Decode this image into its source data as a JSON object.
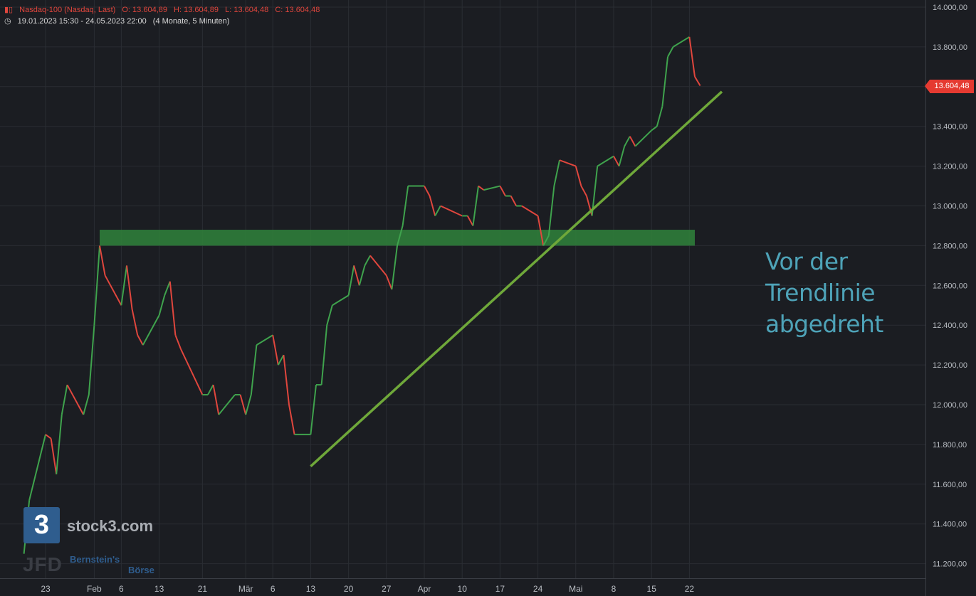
{
  "header": {
    "instrument": "Nasdaq-100 (Nasdaq, Last)",
    "open": "O: 13.604,89",
    "high": "H: 13.604,89",
    "low": "L: 13.604,48",
    "close": "C: 13.604,48",
    "range": "19.01.2023 15:30 - 24.05.2023 22:00",
    "period": "(4 Monate, 5 Minuten)"
  },
  "annotation": [
    "Vor der",
    "Trendlinie",
    "abgedreht"
  ],
  "last_price_label": "13.604,48",
  "branding": {
    "logo_glyph": "3",
    "logo_text": "stock3.com",
    "jfd_text": "JFD",
    "partner_line1": "Bernstein's",
    "partner_line2": "Börse"
  },
  "colors": {
    "up": "#3fa34d",
    "down": "#e0463d",
    "trendline": "#6fa83a",
    "zone": "#2f7d3a",
    "grid": "#2a2d33",
    "axis_text": "#b8bcc2",
    "annotation": "#4ea3b8"
  },
  "chart_data": {
    "type": "line",
    "title": "Nasdaq-100 (Nasdaq, Last)",
    "xlabel": "",
    "ylabel": "",
    "ylim": [
      11100,
      14000
    ],
    "y_ticks": [
      {
        "v": 14000,
        "label": "14.000,00"
      },
      {
        "v": 13800,
        "label": "13.800,00"
      },
      {
        "v": 13600,
        "label": "13.600,00"
      },
      {
        "v": 13400,
        "label": "13.400,00"
      },
      {
        "v": 13200,
        "label": "13.200,00"
      },
      {
        "v": 13000,
        "label": "13.000,00"
      },
      {
        "v": 12800,
        "label": "12.800,00"
      },
      {
        "v": 12600,
        "label": "12.600,00"
      },
      {
        "v": 12400,
        "label": "12.400,00"
      },
      {
        "v": 12200,
        "label": "12.200,00"
      },
      {
        "v": 12000,
        "label": "12.000,00"
      },
      {
        "v": 11800,
        "label": "11.800,00"
      },
      {
        "v": 11600,
        "label": "11.600,00"
      },
      {
        "v": 11400,
        "label": "11.400,00"
      },
      {
        "v": 11200,
        "label": "11.200,00"
      }
    ],
    "x_ticks": [
      {
        "date": "2023-01-23",
        "label": "23"
      },
      {
        "date": "2023-02-01",
        "label": "Feb"
      },
      {
        "date": "2023-02-06",
        "label": "6"
      },
      {
        "date": "2023-02-13",
        "label": "13"
      },
      {
        "date": "2023-02-21",
        "label": "21"
      },
      {
        "date": "2023-03-01",
        "label": "Mär"
      },
      {
        "date": "2023-03-06",
        "label": "6"
      },
      {
        "date": "2023-03-13",
        "label": "13"
      },
      {
        "date": "2023-03-20",
        "label": "20"
      },
      {
        "date": "2023-03-27",
        "label": "27"
      },
      {
        "date": "2023-04-03",
        "label": "Apr"
      },
      {
        "date": "2023-04-10",
        "label": "10"
      },
      {
        "date": "2023-04-17",
        "label": "17"
      },
      {
        "date": "2023-04-24",
        "label": "24"
      },
      {
        "date": "2023-05-01",
        "label": "Mai"
      },
      {
        "date": "2023-05-08",
        "label": "8"
      },
      {
        "date": "2023-05-15",
        "label": "15"
      },
      {
        "date": "2023-05-22",
        "label": "22"
      }
    ],
    "series": [
      {
        "values": [
          {
            "x": "2023-01-19",
            "y": 11250
          },
          {
            "x": "2023-01-20",
            "y": 11520
          },
          {
            "x": "2023-01-23",
            "y": 11850
          },
          {
            "x": "2023-01-24",
            "y": 11830
          },
          {
            "x": "2023-01-25",
            "y": 11650
          },
          {
            "x": "2023-01-26",
            "y": 11950
          },
          {
            "x": "2023-01-27",
            "y": 12100
          },
          {
            "x": "2023-01-30",
            "y": 11950
          },
          {
            "x": "2023-01-31",
            "y": 12050
          },
          {
            "x": "2023-02-01",
            "y": 12400
          },
          {
            "x": "2023-02-02",
            "y": 12800
          },
          {
            "x": "2023-02-03",
            "y": 12650
          },
          {
            "x": "2023-02-06",
            "y": 12500
          },
          {
            "x": "2023-02-07",
            "y": 12700
          },
          {
            "x": "2023-02-08",
            "y": 12480
          },
          {
            "x": "2023-02-09",
            "y": 12350
          },
          {
            "x": "2023-02-10",
            "y": 12300
          },
          {
            "x": "2023-02-13",
            "y": 12450
          },
          {
            "x": "2023-02-14",
            "y": 12550
          },
          {
            "x": "2023-02-15",
            "y": 12620
          },
          {
            "x": "2023-02-16",
            "y": 12350
          },
          {
            "x": "2023-02-17",
            "y": 12280
          },
          {
            "x": "2023-02-21",
            "y": 12050
          },
          {
            "x": "2023-02-22",
            "y": 12050
          },
          {
            "x": "2023-02-23",
            "y": 12100
          },
          {
            "x": "2023-02-24",
            "y": 11950
          },
          {
            "x": "2023-02-27",
            "y": 12050
          },
          {
            "x": "2023-02-28",
            "y": 12050
          },
          {
            "x": "2023-03-01",
            "y": 11950
          },
          {
            "x": "2023-03-02",
            "y": 12050
          },
          {
            "x": "2023-03-03",
            "y": 12300
          },
          {
            "x": "2023-03-06",
            "y": 12350
          },
          {
            "x": "2023-03-07",
            "y": 12200
          },
          {
            "x": "2023-03-08",
            "y": 12250
          },
          {
            "x": "2023-03-09",
            "y": 12000
          },
          {
            "x": "2023-03-10",
            "y": 11850
          },
          {
            "x": "2023-03-13",
            "y": 11850
          },
          {
            "x": "2023-03-14",
            "y": 12100
          },
          {
            "x": "2023-03-15",
            "y": 12100
          },
          {
            "x": "2023-03-16",
            "y": 12400
          },
          {
            "x": "2023-03-17",
            "y": 12500
          },
          {
            "x": "2023-03-20",
            "y": 12550
          },
          {
            "x": "2023-03-21",
            "y": 12700
          },
          {
            "x": "2023-03-22",
            "y": 12600
          },
          {
            "x": "2023-03-23",
            "y": 12700
          },
          {
            "x": "2023-03-24",
            "y": 12750
          },
          {
            "x": "2023-03-27",
            "y": 12650
          },
          {
            "x": "2023-03-28",
            "y": 12580
          },
          {
            "x": "2023-03-29",
            "y": 12800
          },
          {
            "x": "2023-03-30",
            "y": 12900
          },
          {
            "x": "2023-03-31",
            "y": 13100
          },
          {
            "x": "2023-04-03",
            "y": 13100
          },
          {
            "x": "2023-04-04",
            "y": 13050
          },
          {
            "x": "2023-04-05",
            "y": 12950
          },
          {
            "x": "2023-04-06",
            "y": 13000
          },
          {
            "x": "2023-04-10",
            "y": 12950
          },
          {
            "x": "2023-04-11",
            "y": 12950
          },
          {
            "x": "2023-04-12",
            "y": 12900
          },
          {
            "x": "2023-04-13",
            "y": 13100
          },
          {
            "x": "2023-04-14",
            "y": 13080
          },
          {
            "x": "2023-04-17",
            "y": 13100
          },
          {
            "x": "2023-04-18",
            "y": 13050
          },
          {
            "x": "2023-04-19",
            "y": 13050
          },
          {
            "x": "2023-04-20",
            "y": 13000
          },
          {
            "x": "2023-04-21",
            "y": 13000
          },
          {
            "x": "2023-04-24",
            "y": 12950
          },
          {
            "x": "2023-04-25",
            "y": 12800
          },
          {
            "x": "2023-04-26",
            "y": 12850
          },
          {
            "x": "2023-04-27",
            "y": 13100
          },
          {
            "x": "2023-04-28",
            "y": 13230
          },
          {
            "x": "2023-05-01",
            "y": 13200
          },
          {
            "x": "2023-05-02",
            "y": 13100
          },
          {
            "x": "2023-05-03",
            "y": 13050
          },
          {
            "x": "2023-05-04",
            "y": 12950
          },
          {
            "x": "2023-05-05",
            "y": 13200
          },
          {
            "x": "2023-05-08",
            "y": 13250
          },
          {
            "x": "2023-05-09",
            "y": 13200
          },
          {
            "x": "2023-05-10",
            "y": 13300
          },
          {
            "x": "2023-05-11",
            "y": 13350
          },
          {
            "x": "2023-05-12",
            "y": 13300
          },
          {
            "x": "2023-05-15",
            "y": 13380
          },
          {
            "x": "2023-05-16",
            "y": 13400
          },
          {
            "x": "2023-05-17",
            "y": 13500
          },
          {
            "x": "2023-05-18",
            "y": 13750
          },
          {
            "x": "2023-05-19",
            "y": 13800
          },
          {
            "x": "2023-05-22",
            "y": 13850
          },
          {
            "x": "2023-05-23",
            "y": 13650
          },
          {
            "x": "2023-05-24",
            "y": 13604.48
          }
        ]
      }
    ],
    "trendline": [
      {
        "x": "2023-03-13",
        "y": 11690
      },
      {
        "x": "2023-05-28",
        "y": 13575
      }
    ],
    "resistance_zone": {
      "x_start": "2023-02-02",
      "x_end": "2023-05-23",
      "y_low": 12800,
      "y_high": 12880
    },
    "grid": true
  }
}
